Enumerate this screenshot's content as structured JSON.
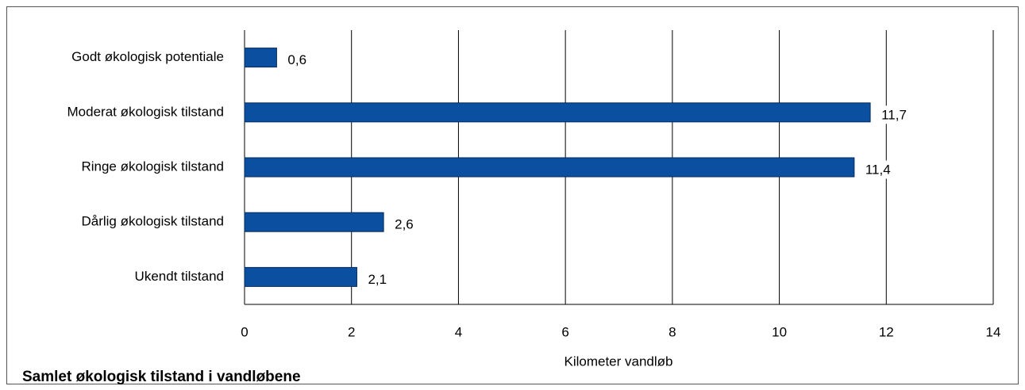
{
  "chart_data": {
    "type": "bar",
    "orientation": "horizontal",
    "title": "Samlet økologisk tilstand i vandløbene",
    "xlabel": "Kilometer vandløb",
    "categories": [
      "Godt økologisk potentiale",
      "Moderat økologisk tilstand",
      "Ringe økologisk tilstand",
      "Dårlig økologisk tilstand",
      "Ukendt tilstand"
    ],
    "values": [
      0.6,
      11.7,
      11.4,
      2.6,
      2.1
    ],
    "value_labels": [
      "0,6",
      "11,7",
      "11,4",
      "2,6",
      "2,1"
    ],
    "color": "#0b50a0",
    "xlim": [
      0,
      14
    ],
    "xticks": [
      0,
      2,
      4,
      6,
      8,
      10,
      12,
      14
    ],
    "grid": true
  }
}
